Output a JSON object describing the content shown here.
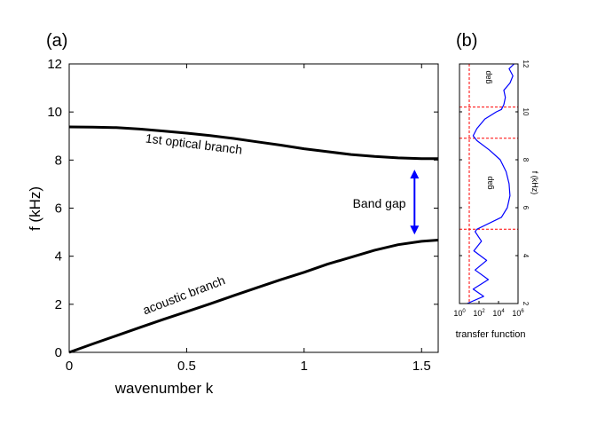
{
  "chart_data": [
    {
      "panel_label": "(a)",
      "type": "line",
      "xlabel": "wavenumber k",
      "ylabel": "f (kHz)",
      "xlim": [
        0,
        1.5708
      ],
      "ylim": [
        0,
        12
      ],
      "xticks": [
        0,
        0.5,
        1,
        1.5
      ],
      "xtick_labels": [
        "0",
        "0.5",
        "1",
        "1.5"
      ],
      "yticks": [
        0,
        2,
        4,
        6,
        8,
        10,
        12
      ],
      "ytick_labels": [
        "0",
        "2",
        "4",
        "6",
        "8",
        "10",
        "12"
      ],
      "grid": false,
      "series": [
        {
          "name": "acoustic branch",
          "color": "#000000",
          "x": [
            0,
            0.1,
            0.2,
            0.3,
            0.4,
            0.5,
            0.6,
            0.7,
            0.8,
            0.9,
            1.0,
            1.1,
            1.2,
            1.3,
            1.4,
            1.5,
            1.5708
          ],
          "values": [
            0,
            0.35,
            0.69,
            1.03,
            1.37,
            1.69,
            2.02,
            2.36,
            2.69,
            3.02,
            3.33,
            3.67,
            3.96,
            4.25,
            4.48,
            4.62,
            4.67
          ]
        },
        {
          "name": "1st optical branch",
          "color": "#000000",
          "x": [
            0,
            0.1,
            0.2,
            0.3,
            0.4,
            0.5,
            0.6,
            0.7,
            0.8,
            0.9,
            1.0,
            1.1,
            1.2,
            1.3,
            1.4,
            1.5,
            1.5708
          ],
          "values": [
            9.38,
            9.37,
            9.35,
            9.29,
            9.21,
            9.12,
            9.02,
            8.9,
            8.76,
            8.62,
            8.47,
            8.35,
            8.23,
            8.15,
            8.09,
            8.06,
            8.06
          ]
        }
      ],
      "annotations": [
        {
          "text": "Band gap",
          "x": 1.32,
          "y": 6.2
        },
        {
          "type": "double-arrow",
          "color": "#0000ff",
          "x": 1.47,
          "from": 4.9,
          "to": 7.6
        }
      ]
    },
    {
      "panel_label": "(b)",
      "type": "line",
      "xlabel": "transfer function",
      "ylabel": "f (kHz)",
      "x_scale": "log",
      "xlim": [
        1,
        1000000
      ],
      "ylim": [
        2,
        12
      ],
      "xticks": [
        1,
        100,
        10000,
        1000000
      ],
      "xtick_bases": [
        "10",
        "10",
        "10",
        "10"
      ],
      "xtick_exps": [
        "0",
        "2",
        "4",
        "6"
      ],
      "yticks": [
        2,
        4,
        6,
        8,
        10,
        12
      ],
      "ytick_labels": [
        "2",
        "4",
        "6",
        "8",
        "10",
        "12"
      ],
      "series": [
        {
          "name": "",
          "color": "#0000ff",
          "f": [
            2.0,
            2.3,
            2.6,
            3.0,
            3.4,
            3.8,
            4.2,
            4.6,
            5.0,
            5.1,
            5.6,
            6.0,
            6.5,
            7.0,
            7.5,
            8.0,
            8.4,
            8.8,
            9.0,
            9.3,
            9.7,
            10.0,
            10.1,
            10.3,
            10.6,
            10.9,
            11.2,
            11.5,
            11.8,
            12.0
          ],
          "values": [
            6,
            300,
            25,
            900,
            40,
            600,
            30,
            180,
            40,
            60,
            20000,
            80000,
            150000,
            120000,
            60000,
            15000,
            1200,
            60,
            25,
            60,
            400,
            6000,
            20000,
            35000,
            50000,
            35000,
            150000,
            300000,
            120000,
            400000
          ]
        }
      ],
      "reference_lines": {
        "color": "#ff0000",
        "style": "dashed",
        "f": [
          5.1,
          8.9,
          10.2
        ],
        "transfer": [
          10
        ]
      },
      "annotations": [
        {
          "text": "gap",
          "f": 11.3
        },
        {
          "text": "gap",
          "f": 6.9
        }
      ]
    }
  ]
}
